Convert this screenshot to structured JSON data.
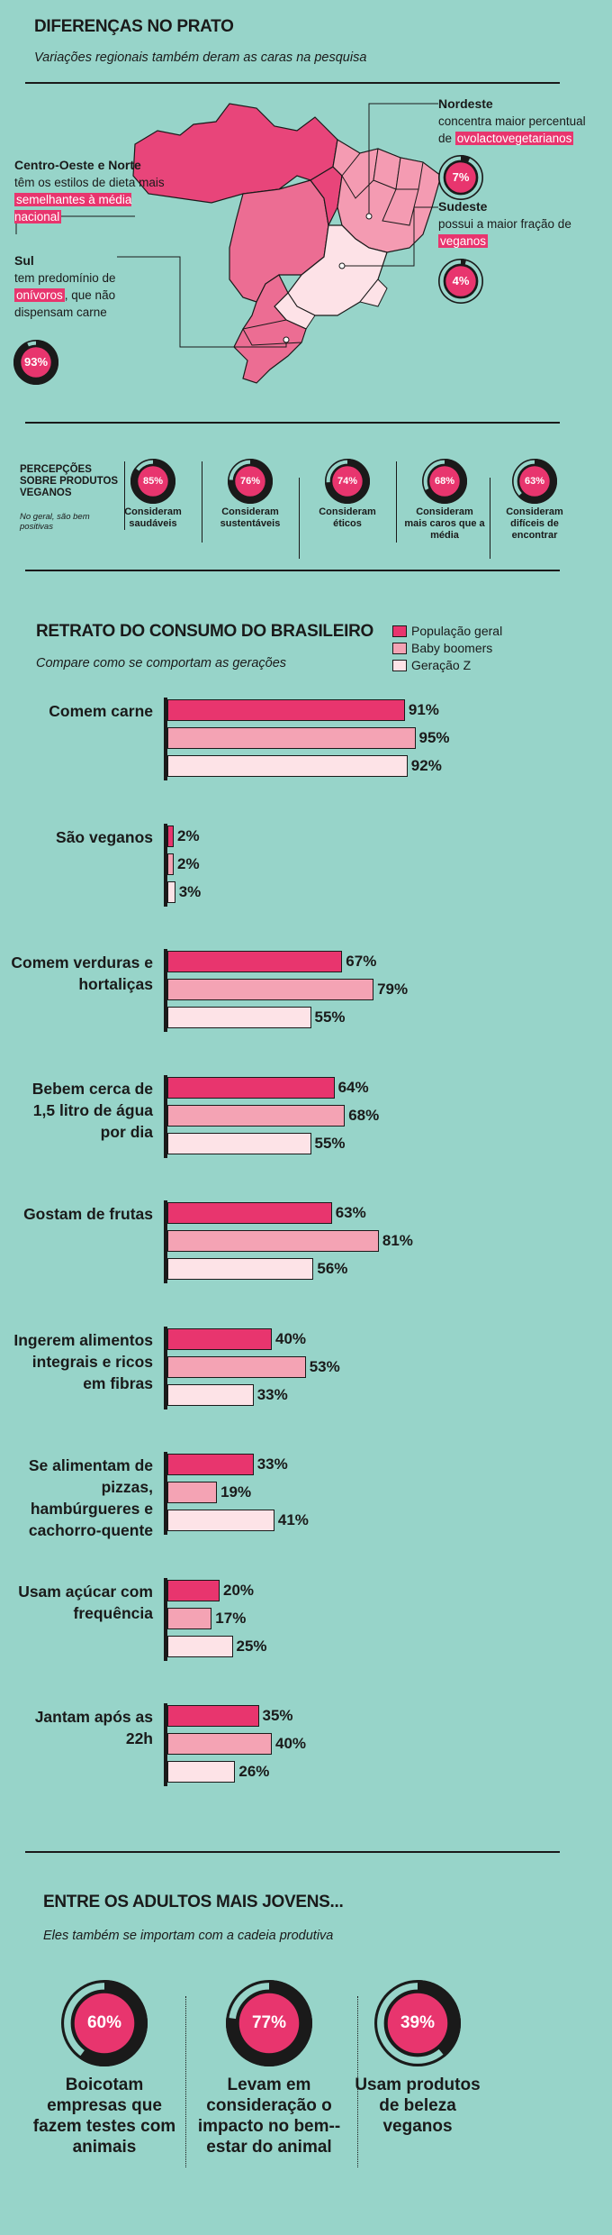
{
  "map_section": {
    "title": "DIFERENÇAS NO PRATO",
    "subtitle": "Variações regionais também deram as caras na pesquisa",
    "regions": {
      "centro_oeste_norte": {
        "name": "Centro-Oeste e Norte",
        "text_before": "têm os estilos de dieta mais",
        "highlight": "semelhantes à média nacional"
      },
      "sul": {
        "name": "Sul",
        "text_before": "tem predomínio de",
        "highlight": "onívoros",
        "text_after": ", que não dispensam carne",
        "pct_label": "93%",
        "pct": 93
      },
      "nordeste": {
        "name": "Nordeste",
        "text_before": "concentra maior percentual de",
        "highlight": "ovolactovegetarianos",
        "pct_label": "7%",
        "pct": 7
      },
      "sudeste": {
        "name": "Sudeste",
        "text_before": "possui a maior fração de",
        "highlight": "veganos",
        "pct_label": "4%",
        "pct": 4
      }
    },
    "colors": {
      "north_center_west": "#e8457a",
      "northeast": "#f49bb2",
      "southeast": "#fde2e7",
      "south": "#ec6d93"
    }
  },
  "perceptions": {
    "title": "PERCEPÇÕES SOBRE PRODUTOS VEGANOS",
    "note": "No geral, são bem positivas",
    "items": [
      {
        "pct": 85,
        "pct_label": "85%",
        "label": "Consideram saudáveis"
      },
      {
        "pct": 76,
        "pct_label": "76%",
        "label": "Consideram sustentáveis"
      },
      {
        "pct": 74,
        "pct_label": "74%",
        "label": "Consideram éticos"
      },
      {
        "pct": 68,
        "pct_label": "68%",
        "label": "Consideram mais caros que a média"
      },
      {
        "pct": 63,
        "pct_label": "63%",
        "label": "Consideram difíceis de encontrar"
      }
    ]
  },
  "consumption": {
    "title": "RETRATO DO CONSUMO DO BRASILEIRO",
    "subtitle": "Compare como se comportam as gerações",
    "legend": [
      "População geral",
      "Baby boomers",
      "Geração Z"
    ]
  },
  "chart_data": {
    "type": "bar",
    "orientation": "horizontal",
    "title": "RETRATO DO CONSUMO DO BRASILEIRO",
    "subtitle": "Compare como se comportam as gerações",
    "categories": [
      "Comem carne",
      "São veganos",
      "Comem verduras e hortaliças",
      "Bebem cerca de 1,5 litro de água por dia",
      "Gostam de frutas",
      "Ingerem alimentos integrais e ricos em fibras",
      "Se alimentam de pizzas, hambúrgueres e cachorro-quente",
      "Usam açúcar com frequência",
      "Jantam após as 22h"
    ],
    "series": [
      {
        "name": "População geral",
        "color": "#e8356e",
        "values": [
          91,
          2,
          67,
          64,
          63,
          40,
          33,
          20,
          35
        ]
      },
      {
        "name": "Baby boomers",
        "color": "#f4a3b4",
        "values": [
          95,
          2,
          79,
          68,
          81,
          53,
          19,
          17,
          40
        ]
      },
      {
        "name": "Geração Z",
        "color": "#fde3e7",
        "values": [
          92,
          3,
          55,
          55,
          56,
          33,
          41,
          25,
          26
        ]
      }
    ],
    "value_suffix": "%",
    "xlim": [
      0,
      100
    ],
    "legend_position": "top-right",
    "grid": false
  },
  "young_adults": {
    "title": "ENTRE OS ADULTOS MAIS JOVENS...",
    "subtitle": "Eles também se importam com a cadeia produtiva",
    "items": [
      {
        "pct": 60,
        "pct_label": "60%",
        "label": "Boicotam empresas que fazem testes com animais"
      },
      {
        "pct": 77,
        "pct_label": "77%",
        "label": "Levam em consideração o impacto no bem--estar do animal"
      },
      {
        "pct": 39,
        "pct_label": "39%",
        "label": "Usam produtos de beleza veganos"
      }
    ]
  }
}
